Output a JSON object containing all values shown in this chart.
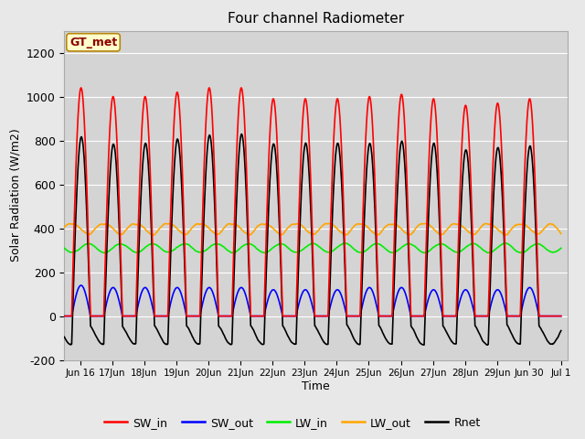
{
  "title": "Four channel Radiometer",
  "ylabel": "Solar Radiation (W/m2)",
  "xlabel": "Time",
  "annotation": "GT_met",
  "ylim": [
    -200,
    1300
  ],
  "yticks": [
    -200,
    0,
    200,
    400,
    600,
    800,
    1000,
    1200
  ],
  "fig_bg": "#e8e8e8",
  "plot_bg": "#d4d4d4",
  "series": {
    "SW_in": {
      "color": "#ff0000",
      "lw": 1.2
    },
    "SW_out": {
      "color": "#0000ff",
      "lw": 1.2
    },
    "LW_in": {
      "color": "#00ee00",
      "lw": 1.2
    },
    "LW_out": {
      "color": "#ffa500",
      "lw": 1.2
    },
    "Rnet": {
      "color": "#000000",
      "lw": 1.2
    }
  },
  "SW_in_peaks": [
    1040,
    1000,
    1000,
    1020,
    1040,
    1040,
    990,
    990,
    990,
    1000,
    1010,
    990,
    960,
    970,
    990
  ],
  "SW_out_peaks": [
    140,
    130,
    130,
    130,
    130,
    130,
    120,
    120,
    120,
    130,
    130,
    120,
    120,
    120,
    130
  ],
  "LW_in_base": 310,
  "LW_in_amp": 20,
  "LW_out_base": 390,
  "LW_out_amp": 30,
  "tick_positions": [
    1,
    2,
    3,
    4,
    5,
    6,
    7,
    8,
    9,
    10,
    11,
    12,
    13,
    14,
    15,
    16
  ],
  "tick_labels": [
    "Jun 16",
    "17Jun",
    "18Jun",
    "19Jun",
    "20Jun",
    "21Jun",
    "22Jun",
    "23Jun",
    "24Jun",
    "25Jun",
    "26Jun",
    "27Jun",
    "28Jun",
    "29Jun",
    "Jun 30",
    "Jul 1"
  ],
  "figsize": [
    6.4,
    4.8
  ],
  "dpi": 100
}
